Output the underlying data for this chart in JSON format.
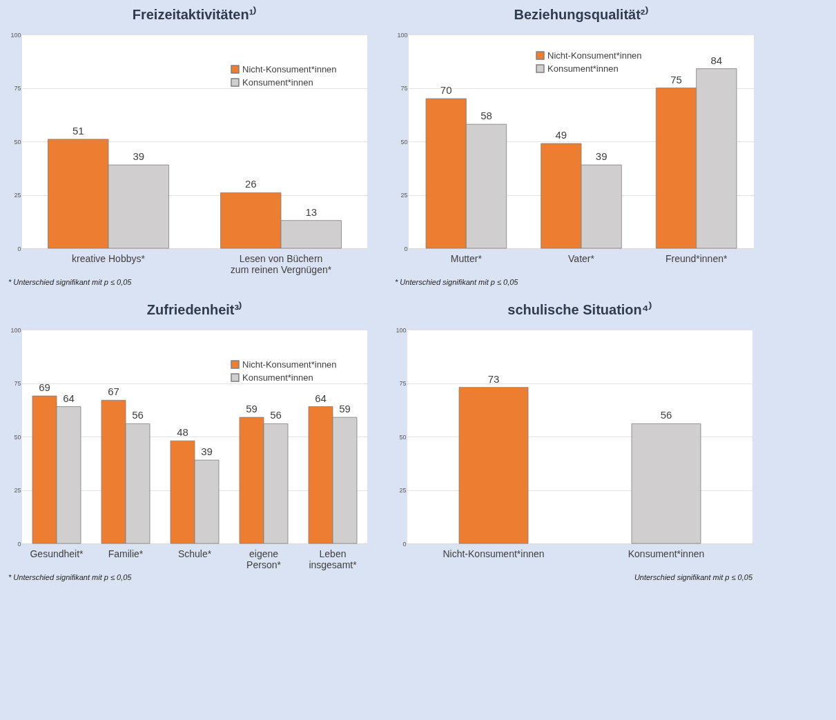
{
  "chart_data": [
    {
      "type": "bar",
      "title": "Freizeitaktivitäten¹⁾",
      "categories": [
        "kreative Hobbys*",
        "Lesen von Büchern zum reinen Vergnügen*"
      ],
      "series": [
        {
          "name": "Nicht-Konsument*innen",
          "color": "#ed7d31",
          "values": [
            51,
            26
          ]
        },
        {
          "name": "Konsument*innen",
          "color": "#d0cece",
          "values": [
            39,
            13
          ]
        }
      ],
      "ylim": [
        0,
        100
      ],
      "yticks": [
        0,
        25,
        50,
        75,
        100
      ],
      "grid": "y",
      "legend": "top right",
      "data_labels": true,
      "annotations": [
        "* Unterschied signifikant mit p ≤ 0,05"
      ]
    },
    {
      "type": "bar",
      "title": "Beziehungsqualität²⁾",
      "categories": [
        "Mutter*",
        "Vater*",
        "Freund*innen*"
      ],
      "series": [
        {
          "name": "Nicht-Konsument*innen",
          "color": "#ed7d31",
          "values": [
            70,
            49,
            75
          ]
        },
        {
          "name": "Konsument*innen",
          "color": "#d0cece",
          "values": [
            58,
            39,
            84
          ]
        }
      ],
      "ylim": [
        0,
        100
      ],
      "yticks": [
        0,
        25,
        50,
        75,
        100
      ],
      "grid": "y",
      "legend": "top",
      "data_labels": true,
      "annotations": [
        "* Unterschied signifikant mit p ≤ 0,05"
      ]
    },
    {
      "type": "bar",
      "title": "Zufriedenheit³⁾",
      "categories": [
        "Gesundheit*",
        "Familie*",
        "Schule*",
        "eigene Person*",
        "Leben insgesamt*"
      ],
      "series": [
        {
          "name": "Nicht-Konsument*innen",
          "color": "#ed7d31",
          "values": [
            69,
            67,
            48,
            59,
            64
          ]
        },
        {
          "name": "Konsument*innen",
          "color": "#d0cece",
          "values": [
            64,
            56,
            39,
            56,
            59
          ]
        }
      ],
      "ylim": [
        0,
        100
      ],
      "yticks": [
        0,
        25,
        50,
        75,
        100
      ],
      "grid": "y",
      "legend": "top right",
      "data_labels": true,
      "annotations": [
        "* Unterschied signifikant mit p ≤ 0,05"
      ]
    },
    {
      "type": "bar",
      "title": "schulische Situation⁴⁾",
      "categories": [
        "Nicht-Konsument*innen",
        "Konsument*innen"
      ],
      "values": [
        73,
        56
      ],
      "colors": [
        "#ed7d31",
        "#d0cece"
      ],
      "ylim": [
        0,
        100
      ],
      "yticks": [
        0,
        25,
        50,
        75,
        100
      ],
      "grid": "y",
      "data_labels": true,
      "annotations": [
        "Unterschied signifikant mit p ≤ 0,05"
      ]
    }
  ]
}
